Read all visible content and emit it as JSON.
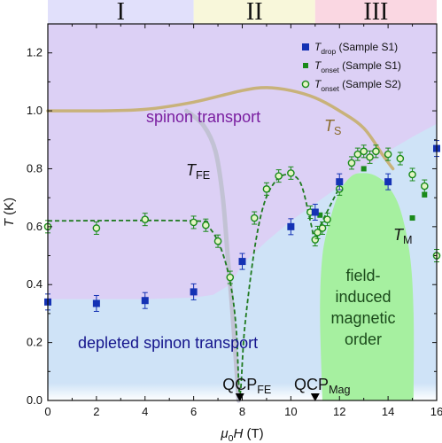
{
  "chart_data": {
    "type": "scatter",
    "xlabel": {
      "prefix": "μ",
      "prefix_sub": "0",
      "main": "H",
      "unit": " (T)"
    },
    "ylabel": {
      "main": "T",
      "unit": " (K)"
    },
    "xlim": [
      0,
      16
    ],
    "ylim": [
      0,
      1.3
    ],
    "xticks": [
      0,
      2,
      4,
      6,
      8,
      10,
      12,
      14,
      16
    ],
    "yticks": [
      0.0,
      0.2,
      0.4,
      0.6,
      0.8,
      1.0,
      1.2
    ],
    "ytick_labels": [
      "0.0",
      "0.2",
      "0.4",
      "0.6",
      "0.8",
      "1.0",
      "1.2"
    ],
    "regions": [
      {
        "label": "I",
        "x_range": [
          0,
          6
        ],
        "color": "#e1e0fb"
      },
      {
        "label": "II",
        "x_range": [
          6,
          11
        ],
        "color": "#f8f7da"
      },
      {
        "label": "III",
        "x_range": [
          11,
          16
        ],
        "color": "#fad7e2"
      }
    ],
    "colors": {
      "spinon_region": "#dcd0f5",
      "depleted_region": "#cfe3f7",
      "ordered_region": "#a6f0a0",
      "Ts_curve": "#c8b27a",
      "TFE_curve": "#c2c2d4",
      "drop": "#1432b4",
      "onset_s1": "#1a8a1a",
      "onset_s2_edge": "#1a8a1a",
      "onset_s2_face": "#e4f5c4",
      "fit_line": "#1f7a1f",
      "spinon_text": "#7a1ea0",
      "depleted_text": "#14148c",
      "ordered_text": "#1a4a1a",
      "Ts_text": "#8a6a2a"
    },
    "legend": {
      "position": "top-right",
      "entries": [
        {
          "symbol": "T",
          "sub": "drop",
          "text": " (Sample S1)"
        },
        {
          "symbol": "T",
          "sub": "onset",
          "text": " (Sample S1)"
        },
        {
          "symbol": "T",
          "sub": "onset",
          "text": " (Sample S2)"
        }
      ]
    },
    "annotations": {
      "spinon": "spinon transport",
      "depleted": "depleted spinon transport",
      "ordered": [
        "field-",
        "induced",
        "magnetic",
        "order"
      ],
      "TS": {
        "main": "T",
        "sub": "S"
      },
      "TFE": {
        "main": "T",
        "sub": "FE"
      },
      "TM": {
        "main": "T",
        "sub": "M"
      },
      "QCP_FE": {
        "main": "QCP",
        "sub": "FE",
        "x": 7.9
      },
      "QCP_Mag": {
        "main": "QCP",
        "sub": "Mag",
        "x": 11.0
      }
    },
    "series": [
      {
        "name": "T_drop (Sample S1)",
        "points": [
          [
            0,
            0.34
          ],
          [
            2,
            0.335
          ],
          [
            4,
            0.345
          ],
          [
            6,
            0.375
          ],
          [
            8,
            0.48
          ],
          [
            10,
            0.6
          ],
          [
            11,
            0.65
          ],
          [
            12,
            0.755
          ],
          [
            14,
            0.755
          ],
          [
            16,
            0.87
          ]
        ]
      },
      {
        "name": "T_onset (Sample S1)",
        "points": [
          [
            11.2,
            0.64
          ],
          [
            12,
            0.755
          ],
          [
            13,
            0.8
          ],
          [
            14,
            0.755
          ],
          [
            15,
            0.63
          ],
          [
            15.5,
            0.71
          ]
        ]
      },
      {
        "name": "T_onset (Sample S2)",
        "points": [
          [
            0,
            0.6
          ],
          [
            2,
            0.595
          ],
          [
            4,
            0.625
          ],
          [
            6,
            0.615
          ],
          [
            6.5,
            0.605
          ],
          [
            7,
            0.55
          ],
          [
            7.5,
            0.425
          ],
          [
            8.5,
            0.63
          ],
          [
            9,
            0.73
          ],
          [
            9.5,
            0.775
          ],
          [
            10,
            0.785
          ],
          [
            10.8,
            0.65
          ],
          [
            11.0,
            0.555
          ],
          [
            11.1,
            0.58
          ],
          [
            11.3,
            0.595
          ],
          [
            11.5,
            0.625
          ],
          [
            12,
            0.73
          ],
          [
            12.5,
            0.82
          ],
          [
            12.75,
            0.85
          ],
          [
            13,
            0.86
          ],
          [
            13.25,
            0.84
          ],
          [
            13.5,
            0.86
          ],
          [
            14,
            0.85
          ],
          [
            14.5,
            0.835
          ],
          [
            15,
            0.78
          ],
          [
            15.5,
            0.74
          ],
          [
            16,
            0.5
          ]
        ]
      }
    ],
    "boundary_TS": [
      [
        0,
        1.0
      ],
      [
        2,
        1.0
      ],
      [
        4,
        1.005
      ],
      [
        6,
        1.03
      ],
      [
        8,
        1.07
      ],
      [
        9,
        1.08
      ],
      [
        10,
        1.07
      ],
      [
        11,
        1.045
      ],
      [
        12,
        1.0
      ],
      [
        13,
        0.94
      ],
      [
        13.8,
        0.845
      ],
      [
        14.2,
        0.8
      ]
    ],
    "boundary_TFE": [
      [
        5.7,
        1.0
      ],
      [
        6.4,
        0.95
      ],
      [
        6.9,
        0.86
      ],
      [
        7.2,
        0.7
      ],
      [
        7.4,
        0.5
      ],
      [
        7.6,
        0.3
      ],
      [
        7.85,
        0.0
      ]
    ],
    "depleted_top": [
      [
        0,
        0.35
      ],
      [
        2,
        0.35
      ],
      [
        4,
        0.35
      ],
      [
        6,
        0.355
      ],
      [
        6.8,
        0.365
      ],
      [
        7.5,
        0.4
      ],
      [
        8,
        0.47
      ],
      [
        9,
        0.55
      ],
      [
        10,
        0.62
      ],
      [
        11,
        0.68
      ],
      [
        12,
        0.74
      ],
      [
        13,
        0.8
      ],
      [
        14,
        0.86
      ],
      [
        15,
        0.91
      ],
      [
        16,
        0.955
      ]
    ],
    "ordered_region": [
      [
        11.3,
        0.0
      ],
      [
        11.2,
        0.3
      ],
      [
        11.3,
        0.5
      ],
      [
        11.6,
        0.62
      ],
      [
        12.0,
        0.72
      ],
      [
        12.5,
        0.775
      ],
      [
        13.0,
        0.785
      ],
      [
        13.5,
        0.775
      ],
      [
        14.0,
        0.74
      ],
      [
        14.5,
        0.66
      ],
      [
        14.9,
        0.5
      ],
      [
        15.05,
        0.3
      ],
      [
        15.05,
        0.0
      ]
    ],
    "fit_line": [
      [
        0,
        0.62
      ],
      [
        6,
        0.62
      ],
      [
        6.6,
        0.6
      ],
      [
        7.1,
        0.53
      ],
      [
        7.5,
        0.41
      ],
      [
        7.75,
        0.25
      ],
      [
        7.9,
        0.02
      ],
      [
        8.1,
        0.25
      ],
      [
        8.5,
        0.52
      ],
      [
        8.9,
        0.68
      ],
      [
        9.4,
        0.76
      ],
      [
        9.9,
        0.78
      ],
      [
        10.4,
        0.75
      ],
      [
        10.8,
        0.62
      ],
      [
        11.0,
        0.55
      ],
      [
        11.2,
        0.6
      ],
      [
        11.6,
        0.67
      ],
      [
        12.0,
        0.735
      ]
    ]
  }
}
